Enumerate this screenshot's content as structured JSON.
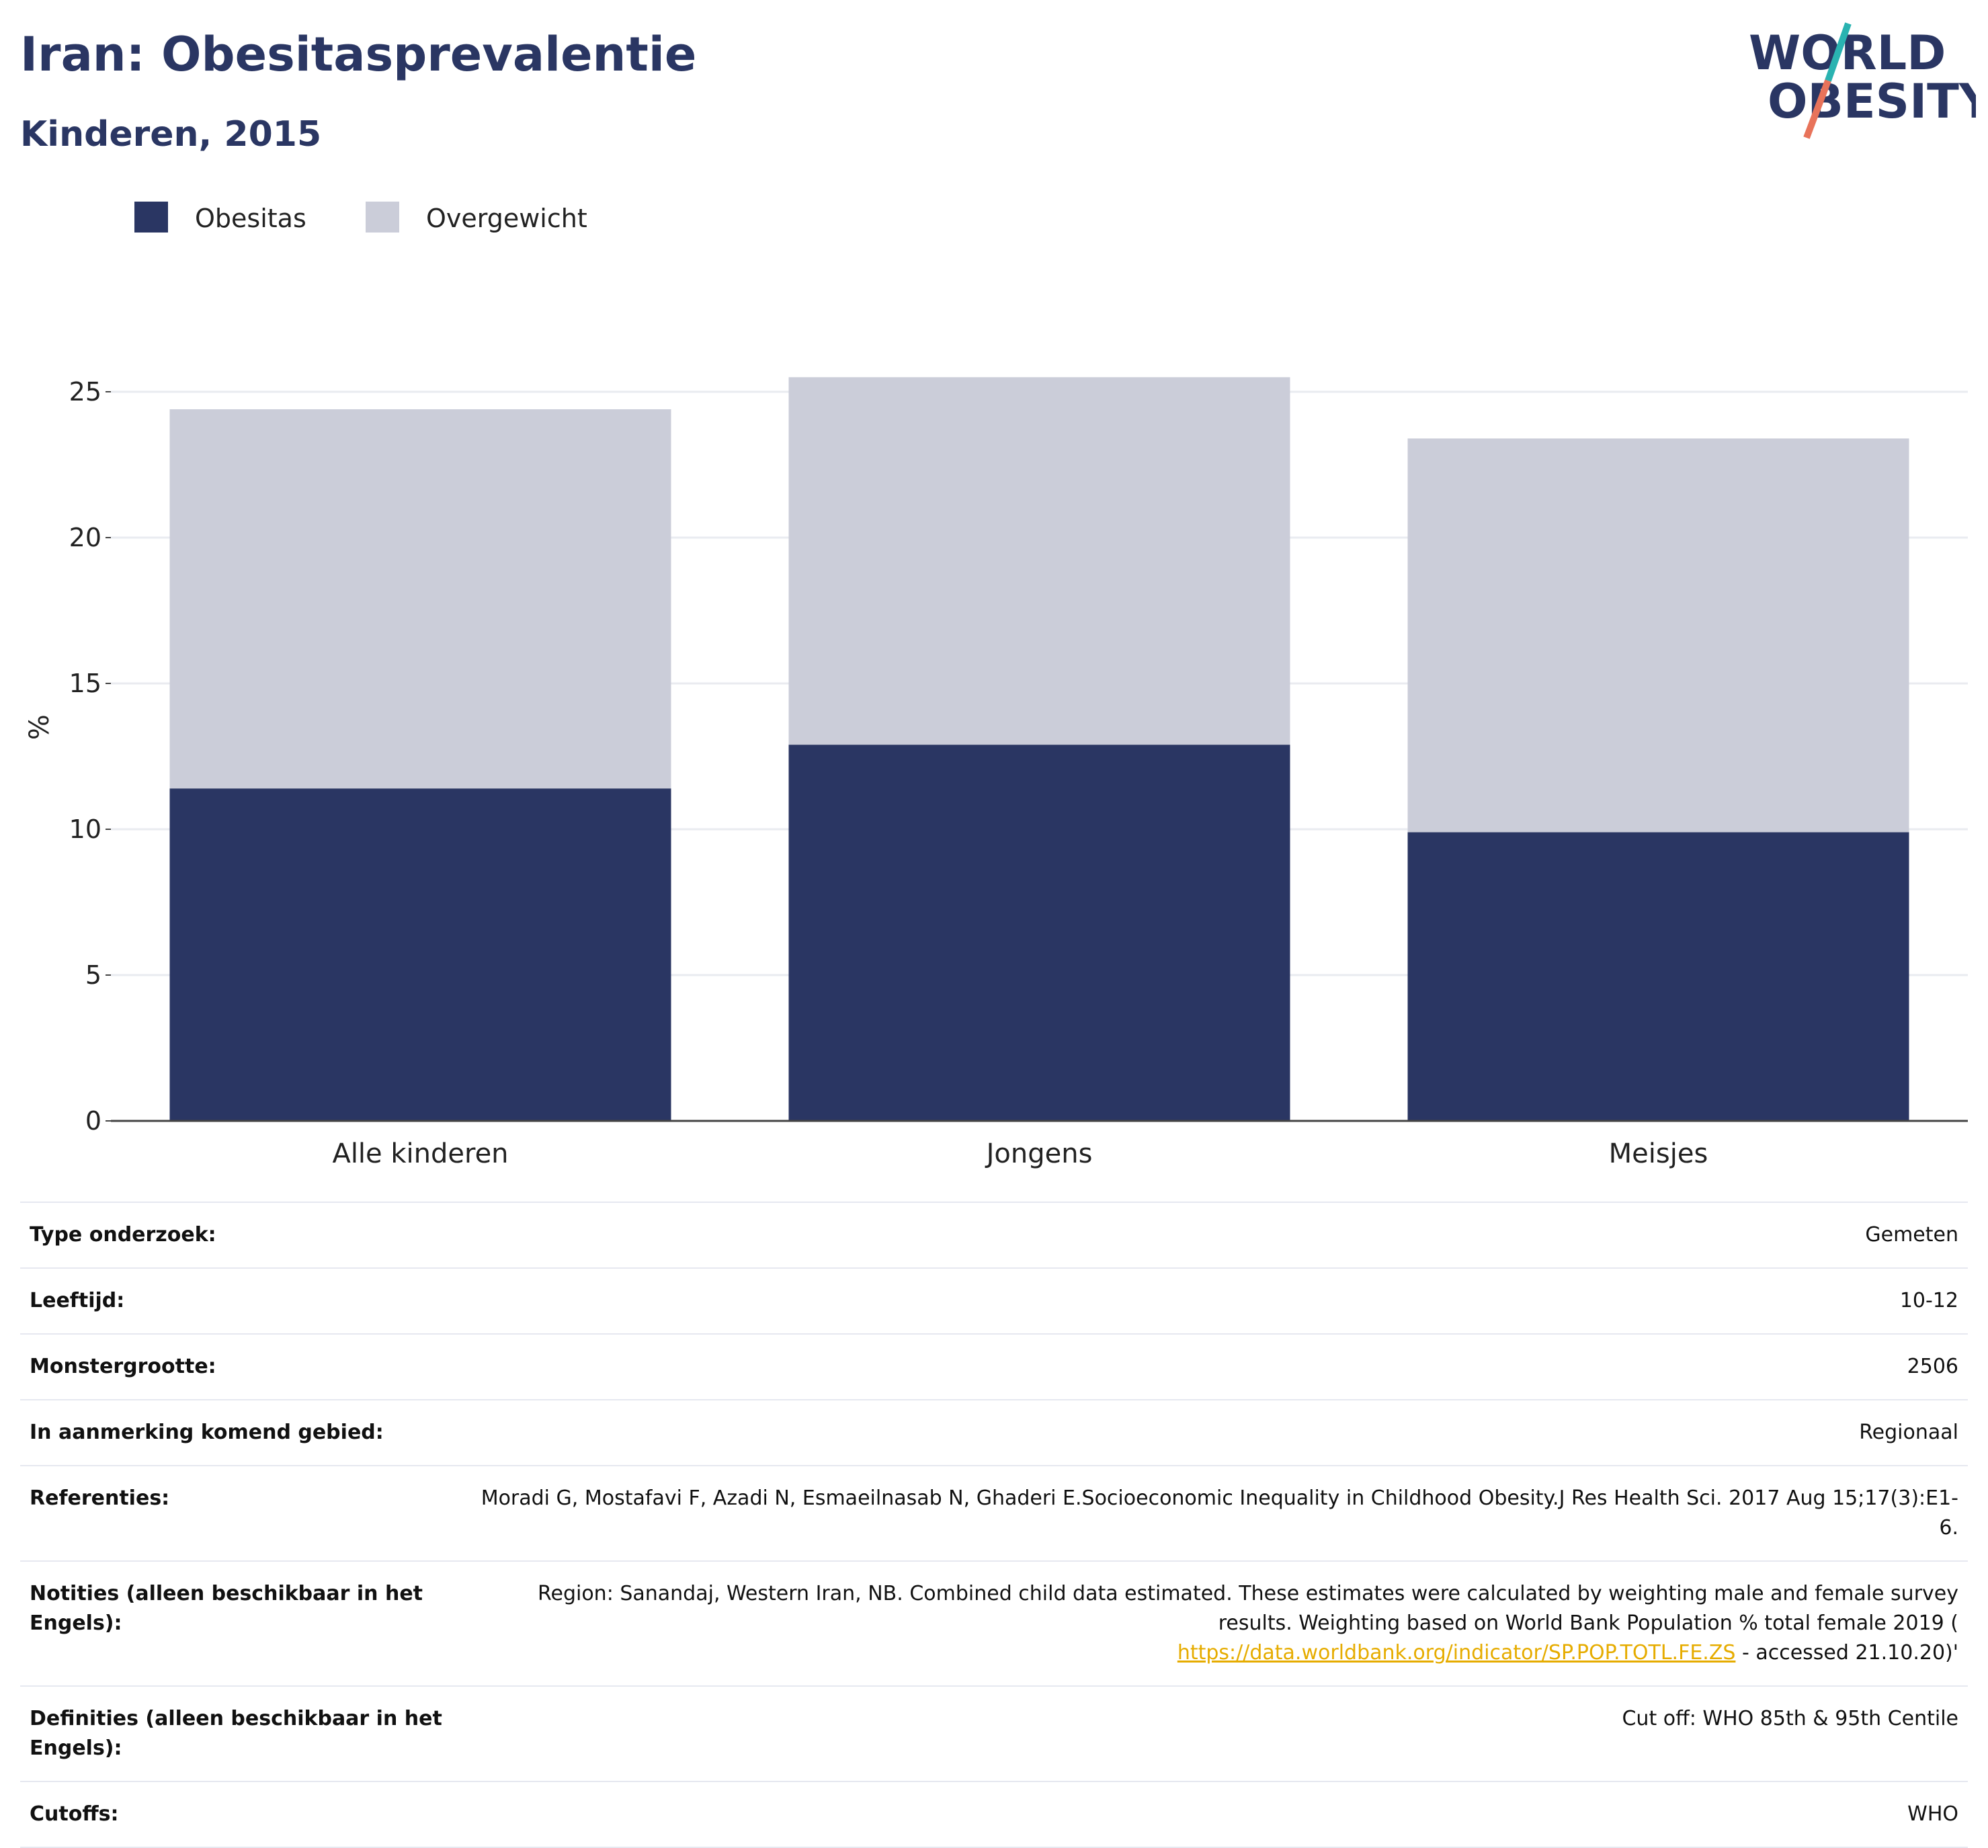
{
  "header": {
    "title": "Iran: Obesitasprevalentie",
    "subtitle": "Kinderen, 2015"
  },
  "logo": {
    "line1": "WORLD",
    "line2": "OBESITY",
    "colors": {
      "text": "#2a3663",
      "teal": "#2ab3b1",
      "coral": "#e8735a"
    }
  },
  "chart_data": {
    "type": "bar",
    "stacked": true,
    "categories": [
      "Alle kinderen",
      "Jongens",
      "Meisjes"
    ],
    "series": [
      {
        "name": "Obesitas",
        "values": [
          11.4,
          12.9,
          9.9
        ],
        "color": "#2a3663"
      },
      {
        "name": "Overgewicht",
        "values": [
          13.0,
          12.6,
          13.5
        ],
        "color": "#cbcdd9"
      }
    ],
    "ylabel": "%",
    "ylim": [
      0,
      27
    ],
    "yticks": [
      0,
      5,
      10,
      15,
      20,
      25
    ],
    "grid": true,
    "legend_position": "top-left"
  },
  "info_table": {
    "rows": [
      {
        "label": "Type onderzoek:",
        "value": "Gemeten"
      },
      {
        "label": "Leeftijd:",
        "value": "10-12"
      },
      {
        "label": "Monstergrootte:",
        "value": "2506"
      },
      {
        "label": "In aanmerking komend gebied:",
        "value": "Regionaal"
      },
      {
        "label": "Referenties:",
        "value": "Moradi G, Mostafavi F, Azadi N, Esmaeilnasab N, Ghaderi E.Socioeconomic Inequality in Childhood Obesity.J Res Health Sci. 2017 Aug 15;17(3):E1-6."
      },
      {
        "label": "Notities (alleen beschikbaar in het Engels):",
        "value": "Region: Sanandaj, Western Iran, NB. Combined child data estimated. These estimates were calculated by weighting male and female survey results. Weighting based on World Bank Population % total female 2019 (",
        "link": "https://data.worldbank.org/indicator/SP.POP.TOTL.FE.ZS",
        "value_after": " - accessed 21.10.20)'"
      },
      {
        "label": "Definities (alleen beschikbaar in het Engels):",
        "value": "Cut off: WHO 85th & 95th Centile"
      },
      {
        "label": "Cutoffs:",
        "value": "WHO"
      }
    ]
  }
}
